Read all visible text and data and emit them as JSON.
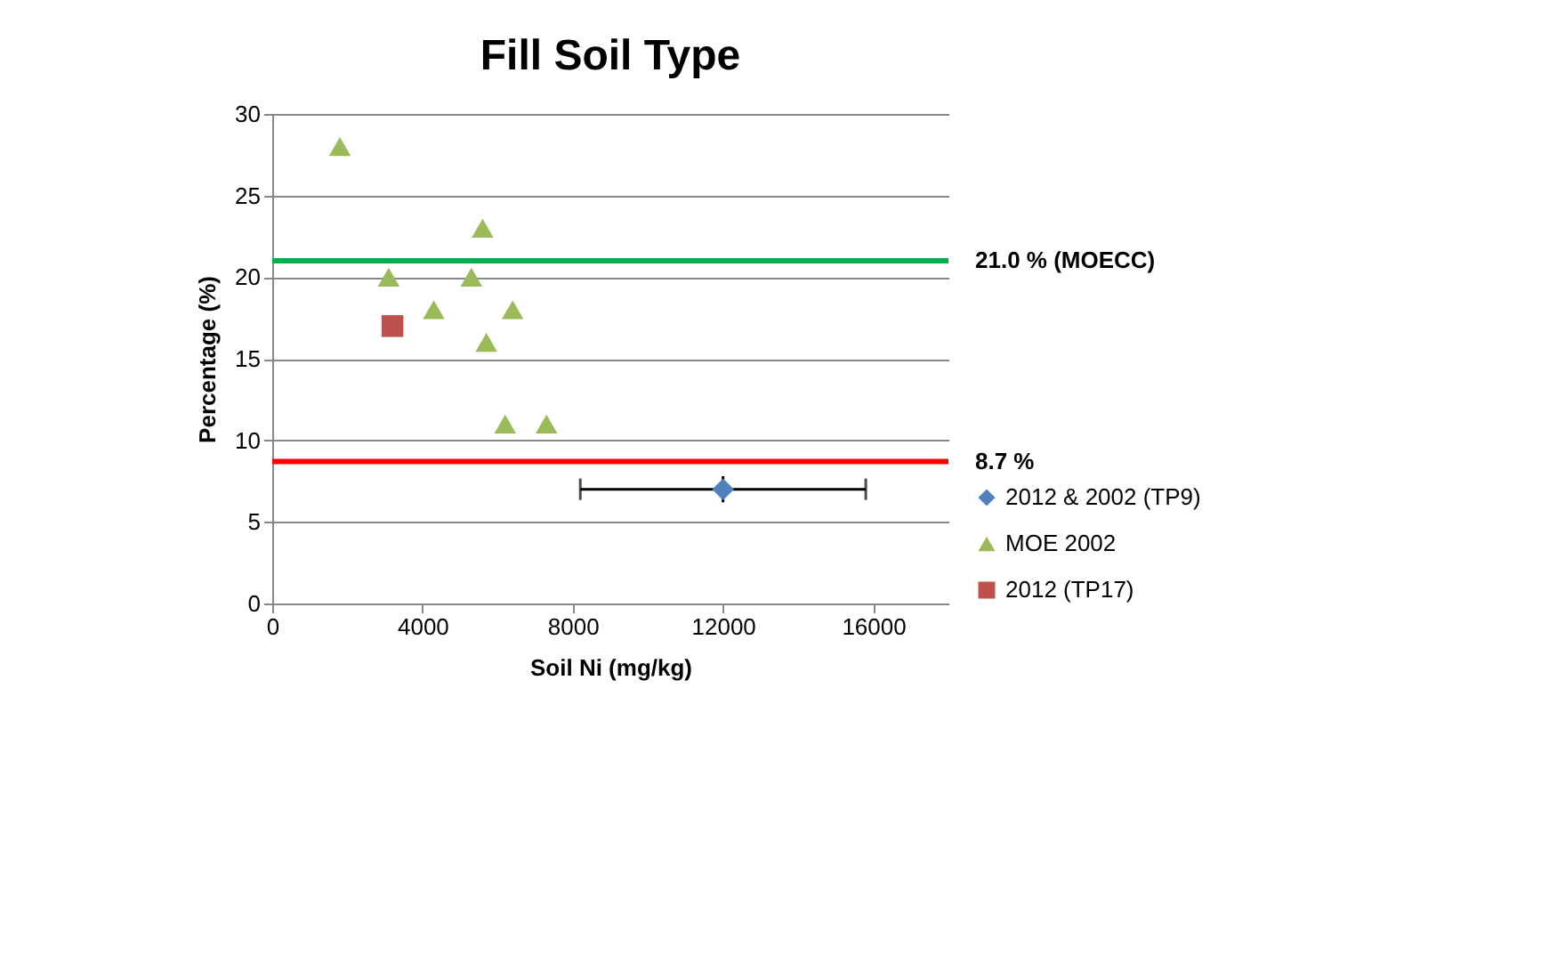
{
  "chart_data": {
    "type": "scatter",
    "title": "Fill Soil Type",
    "xlabel": "Soil Ni (mg/kg)",
    "ylabel": "Percentage (%)",
    "xlim": [
      0,
      18000
    ],
    "xticks": [
      0,
      4000,
      8000,
      12000,
      16000
    ],
    "ylim": [
      0,
      30
    ],
    "yticks": [
      0,
      5,
      10,
      15,
      20,
      25,
      30
    ],
    "grid": "y",
    "legend": "right",
    "series": [
      {
        "name": "2012 & 2002 (TP9)",
        "color": "#4f81bd",
        "marker": "diamond",
        "x": [
          12000
        ],
        "values": [
          7
        ],
        "errors": [
          0.8
        ],
        "xerrors": [
          [
            8200,
            15800
          ]
        ]
      },
      {
        "name": "MOE 2002",
        "color": "#9bbb59",
        "marker": "triangle",
        "x": [
          1800,
          5600,
          3100,
          5300,
          4300,
          6400,
          5700,
          6200,
          7300
        ],
        "values": [
          28,
          23,
          20,
          20,
          18,
          18,
          16,
          11,
          11
        ]
      },
      {
        "name": "2012 (TP17)",
        "color": "#c0504d",
        "marker": "square",
        "x": [
          3200
        ],
        "values": [
          17
        ]
      }
    ],
    "ref_lines": [
      {
        "axis": "y",
        "value": 21.0,
        "label": "21.0 % (MOECC)",
        "color": "#00b050"
      },
      {
        "axis": "y",
        "value": 8.7,
        "label": "8.7 %",
        "color": "#ff0000"
      }
    ]
  }
}
